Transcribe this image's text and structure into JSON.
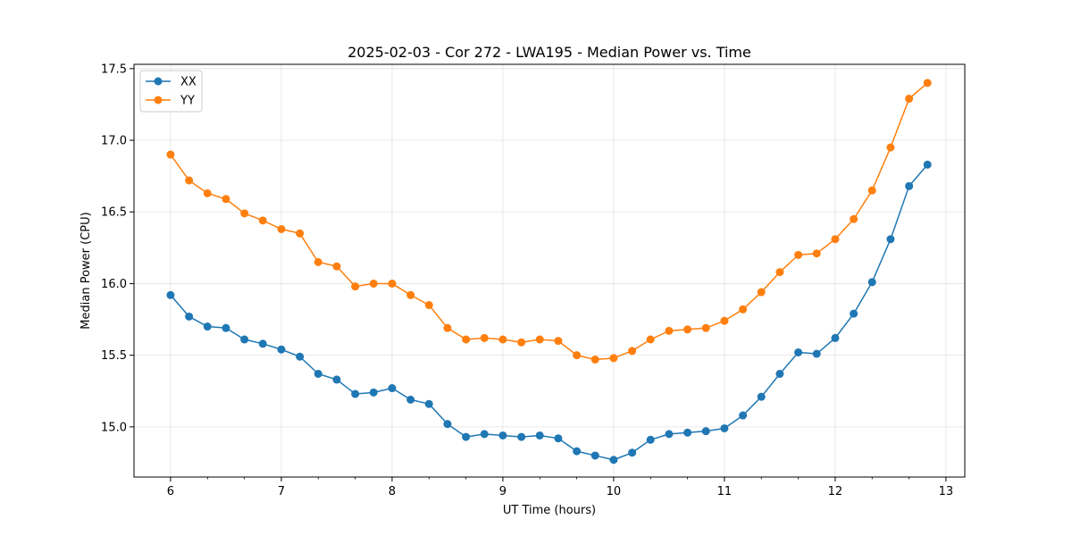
{
  "chart_data": {
    "type": "line",
    "title": "2025-02-03 - Cor 272 - LWA195 - Median Power vs. Time",
    "xlabel": "UT Time (hours)",
    "ylabel": "Median Power (CPU)",
    "xlim": [
      5.67,
      13.17
    ],
    "ylim": [
      14.65,
      17.53
    ],
    "grid": true,
    "legend_position": "top-left",
    "x_ticks": [
      6,
      7,
      8,
      9,
      10,
      11,
      12,
      13
    ],
    "x_tick_labels": [
      "6",
      "7",
      "8",
      "9",
      "10",
      "11",
      "12",
      "13"
    ],
    "y_ticks": [
      15.0,
      15.5,
      16.0,
      16.5,
      17.0,
      17.5
    ],
    "y_tick_labels": [
      "15.0",
      "15.5",
      "16.0",
      "16.5",
      "17.0",
      "17.5"
    ],
    "x": [
      6.0,
      6.167,
      6.333,
      6.5,
      6.667,
      6.833,
      7.0,
      7.167,
      7.333,
      7.5,
      7.667,
      7.833,
      8.0,
      8.167,
      8.333,
      8.5,
      8.667,
      8.833,
      9.0,
      9.167,
      9.333,
      9.5,
      9.667,
      9.833,
      10.0,
      10.167,
      10.333,
      10.5,
      10.667,
      10.833,
      11.0,
      11.167,
      11.333,
      11.5,
      11.667,
      11.833,
      12.0,
      12.167,
      12.333,
      12.5,
      12.667,
      12.833
    ],
    "series": [
      {
        "name": "XX",
        "color": "#1f77b4",
        "values": [
          15.92,
          15.77,
          15.7,
          15.69,
          15.61,
          15.58,
          15.54,
          15.49,
          15.37,
          15.33,
          15.23,
          15.24,
          15.27,
          15.19,
          15.16,
          15.02,
          14.93,
          14.95,
          14.94,
          14.93,
          14.94,
          14.92,
          14.83,
          14.8,
          14.77,
          14.82,
          14.91,
          14.95,
          14.96,
          14.97,
          14.99,
          15.08,
          15.21,
          15.37,
          15.52,
          15.51,
          15.62,
          15.79,
          16.01,
          16.31,
          16.68,
          16.83
        ]
      },
      {
        "name": "YY",
        "color": "#ff7f0e",
        "values": [
          16.9,
          16.72,
          16.63,
          16.59,
          16.49,
          16.44,
          16.38,
          16.35,
          16.15,
          16.12,
          15.98,
          16.0,
          16.0,
          15.92,
          15.85,
          15.69,
          15.61,
          15.62,
          15.61,
          15.59,
          15.61,
          15.6,
          15.5,
          15.47,
          15.48,
          15.53,
          15.61,
          15.67,
          15.68,
          15.69,
          15.74,
          15.82,
          15.94,
          16.08,
          16.2,
          16.21,
          16.31,
          16.45,
          16.65,
          16.95,
          17.29,
          17.4
        ]
      }
    ]
  }
}
